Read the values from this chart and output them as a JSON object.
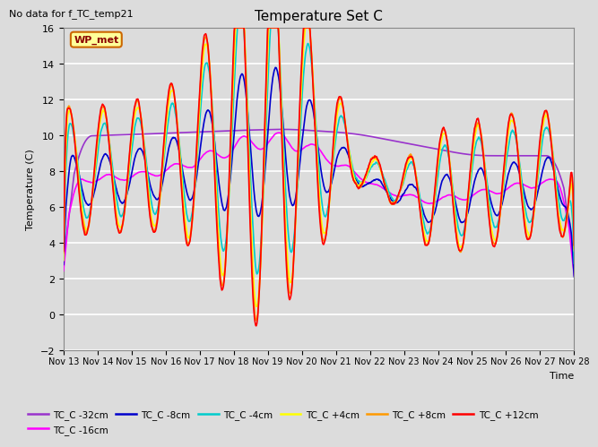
{
  "title": "Temperature Set C",
  "subtitle": "No data for f_TC_temp21",
  "xlabel": "Time",
  "ylabel": "Temperature (C)",
  "ylim": [
    -2,
    16
  ],
  "yticks": [
    -2,
    0,
    2,
    4,
    6,
    8,
    10,
    12,
    14,
    16
  ],
  "bg_color": "#dcdcdc",
  "grid_color": "#ffffff",
  "wp_met_box_color": "#ffff99",
  "wp_met_border_color": "#cc6600",
  "xtick_labels": [
    "Nov 13",
    "Nov 14",
    "Nov 15",
    "Nov 16",
    "Nov 17",
    "Nov 18",
    "Nov 19",
    "Nov 20",
    "Nov 21",
    "Nov 22",
    "Nov 23",
    "Nov 24",
    "Nov 25",
    "Nov 26",
    "Nov 27",
    "Nov 28"
  ],
  "series_colors": {
    "TC_C -32cm": "#9933cc",
    "TC_C -16cm": "#ff00ff",
    "TC_C -8cm": "#0000cc",
    "TC_C -4cm": "#00cccc",
    "TC_C +4cm": "#ffff00",
    "TC_C +8cm": "#ff9900",
    "TC_C +12cm": "#ff0000"
  }
}
